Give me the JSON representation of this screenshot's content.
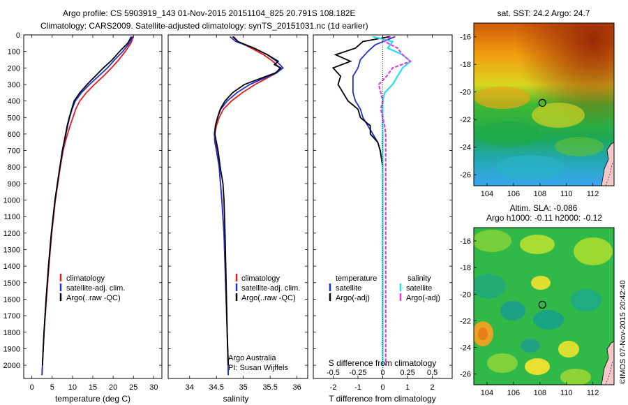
{
  "header": {
    "line1": "Argo profile: CS 5903919_143 01-Nov-2015 20151104_825 20.791S 108.182E",
    "line2": "Climatology: CARS2009. Satellite-adjusted climatology: synTS_20151031.nc (1d earlier)"
  },
  "colors": {
    "clim": "#e41a1c",
    "sat": "#1f2fd6",
    "argo": "#000000",
    "sal_sat": "#22e0f0",
    "sal_argo": "#e040e0"
  },
  "depth_ticks": [
    0,
    100,
    200,
    300,
    400,
    500,
    600,
    700,
    800,
    900,
    1000,
    1100,
    1200,
    1300,
    1400,
    1500,
    1600,
    1700,
    1800,
    1900,
    2000
  ],
  "chart_data": [
    {
      "type": "line",
      "xlabel": "temperature (deg C)",
      "xlim": [
        -2,
        32
      ],
      "xticks": [
        0,
        5,
        10,
        15,
        20,
        25,
        30
      ],
      "ylim": [
        2080,
        0
      ],
      "legend": [
        "climatology",
        "satellite-adj. clim.",
        "Argo(..raw -QC)"
      ],
      "series": [
        {
          "name": "climatology",
          "color_key": "clim",
          "depth": [
            10,
            50,
            100,
            150,
            200,
            250,
            300,
            350,
            400,
            450,
            500,
            550,
            600,
            650,
            700,
            800,
            900,
            1000,
            1200,
            1400,
            1600,
            1800,
            2000,
            2060
          ],
          "values": [
            25.0,
            24.4,
            23.0,
            21.4,
            19.6,
            17.6,
            15.4,
            13.4,
            11.8,
            10.8,
            10.1,
            9.4,
            8.8,
            8.2,
            7.7,
            7.0,
            6.4,
            5.8,
            4.9,
            4.2,
            3.6,
            3.0,
            2.6,
            2.5
          ]
        },
        {
          "name": "satellite-adj. clim.",
          "color_key": "sat",
          "depth": [
            10,
            50,
            100,
            150,
            200,
            250,
            300,
            350,
            400,
            450,
            500,
            550,
            600,
            650,
            700,
            800,
            900,
            1000,
            1200,
            1400,
            1600,
            1800,
            2000,
            2060
          ],
          "values": [
            24.8,
            24.0,
            22.4,
            20.4,
            18.6,
            16.4,
            14.2,
            12.2,
            10.7,
            9.9,
            9.3,
            8.8,
            8.4,
            8.0,
            7.6,
            6.9,
            6.3,
            5.7,
            4.8,
            4.1,
            3.5,
            3.0,
            2.6,
            2.5
          ]
        },
        {
          "name": "Argo(..raw -QC)",
          "color_key": "argo",
          "depth": [
            10,
            50,
            100,
            150,
            200,
            250,
            300,
            350,
            400,
            450,
            500,
            550,
            600,
            650,
            700,
            800,
            900,
            1000,
            1200,
            1400,
            1600,
            1800,
            2000
          ],
          "values": [
            24.5,
            23.6,
            21.6,
            19.8,
            17.6,
            15.6,
            13.6,
            11.8,
            10.4,
            9.8,
            9.2,
            8.7,
            8.3,
            7.9,
            7.5,
            6.9,
            6.3,
            5.7,
            4.8,
            4.1,
            3.5,
            3.0,
            2.6
          ]
        }
      ]
    },
    {
      "type": "line",
      "xlabel": "salinity",
      "xlim": [
        33.6,
        36.2
      ],
      "xticks": [
        34,
        34.5,
        35,
        35.5,
        36
      ],
      "ylim": [
        2080,
        0
      ],
      "legend": [
        "climatology",
        "satellite-adj. clim.",
        "Argo(..raw -QC)"
      ],
      "annotation": [
        "Argo Australia",
        "PI: Susan Wijffels"
      ],
      "series": [
        {
          "name": "climatology",
          "color_key": "clim",
          "depth": [
            10,
            40,
            80,
            120,
            160,
            200,
            230,
            260,
            300,
            350,
            400,
            450,
            500,
            550,
            600,
            650,
            700,
            800,
            1000,
            1200,
            1500,
            1800,
            2060
          ],
          "values": [
            34.82,
            34.9,
            35.15,
            35.38,
            35.55,
            35.68,
            35.62,
            35.45,
            35.22,
            34.98,
            34.78,
            34.63,
            34.55,
            34.5,
            34.47,
            34.48,
            34.51,
            34.55,
            34.6,
            34.64,
            34.67,
            34.7,
            34.72
          ]
        },
        {
          "name": "satellite-adj. clim.",
          "color_key": "sat",
          "depth": [
            10,
            40,
            80,
            120,
            160,
            200,
            230,
            260,
            300,
            350,
            400,
            450,
            500,
            550,
            600,
            650,
            700,
            800,
            1000,
            1200,
            1500,
            1800,
            2060
          ],
          "values": [
            34.75,
            34.86,
            35.2,
            35.45,
            35.62,
            35.74,
            35.62,
            35.4,
            35.12,
            34.88,
            34.7,
            34.58,
            34.52,
            34.48,
            34.46,
            34.47,
            34.5,
            34.55,
            34.6,
            34.64,
            34.67,
            34.7,
            34.72
          ]
        },
        {
          "name": "Argo(..raw -QC)",
          "color_key": "argo",
          "depth": [
            10,
            40,
            80,
            120,
            160,
            180,
            200,
            230,
            260,
            300,
            350,
            400,
            450,
            500,
            550,
            600,
            650,
            700,
            800,
            900,
            1000,
            1200,
            1500,
            1800,
            2000
          ],
          "values": [
            34.8,
            34.9,
            35.2,
            35.45,
            35.65,
            35.58,
            35.7,
            35.6,
            35.35,
            35.02,
            34.8,
            34.66,
            34.57,
            34.52,
            34.48,
            34.47,
            34.5,
            34.53,
            34.57,
            34.62,
            34.64,
            34.66,
            34.68,
            34.7,
            34.72
          ]
        }
      ]
    },
    {
      "type": "line",
      "xlabel": "T difference from climatology",
      "xlabel_top": "S difference from climatology",
      "xlim": [
        -2.8,
        2.8
      ],
      "xticks": [
        -2,
        -1,
        0,
        1,
        2
      ],
      "xticks_sal": [
        -0.5,
        -0.25,
        0,
        0.25,
        0.5
      ],
      "xtick_labels_sal": [
        "-0.5",
        "-0.25",
        "0",
        "0.25",
        "0.5"
      ],
      "ylim": [
        2080,
        0
      ],
      "legend_temp": {
        "title": "temperature",
        "items": [
          "satellite",
          "Argo(-adj)"
        ]
      },
      "legend_sal": {
        "title": "salinity",
        "items": [
          "satellite",
          "Argo(-adj)"
        ]
      },
      "series": [
        {
          "name": "satellite",
          "color_key": "sat",
          "depth": [
            10,
            60,
            100,
            150,
            200,
            250,
            300,
            350,
            400,
            450,
            500,
            550,
            600,
            650,
            700,
            800,
            1000,
            1400,
            2000
          ],
          "values": [
            0.5,
            -0.3,
            -0.6,
            -0.9,
            -1.0,
            -1.2,
            -1.2,
            -1.2,
            -1.1,
            -0.9,
            -0.8,
            -0.6,
            -0.4,
            -0.2,
            -0.1,
            0,
            0,
            0,
            0
          ]
        },
        {
          "name": "Argo(-adj)",
          "color_key": "argo",
          "depth": [
            10,
            40,
            80,
            120,
            160,
            200,
            250,
            300,
            350,
            400,
            450,
            500,
            550,
            600,
            650,
            700,
            800,
            1000,
            1400,
            2000
          ],
          "values": [
            0.3,
            -0.8,
            -1.1,
            -1.9,
            -1.3,
            -2.0,
            -1.7,
            -1.8,
            -1.6,
            -1.4,
            -1.0,
            -0.9,
            -0.5,
            -0.5,
            -0.2,
            -0.1,
            0,
            0,
            0,
            0
          ]
        },
        {
          "name": "satellite (salinity)",
          "color_key": "sal_sat",
          "depth": [
            10,
            40,
            80,
            120,
            160,
            200,
            250,
            300,
            350,
            400,
            450,
            500,
            550,
            600,
            700,
            800,
            1000,
            1400,
            2000
          ],
          "values": [
            -0.1,
            0.1,
            0.05,
            0.2,
            0.28,
            0.2,
            0.15,
            0.1,
            0.02,
            0.0,
            0.0,
            0.0,
            0.0,
            0.0,
            0.0,
            0.0,
            0.0,
            0.0,
            0.0
          ]
        },
        {
          "name": "Argo(-adj) (salinity)",
          "color_key": "sal_argo",
          "depth": [
            10,
            40,
            80,
            120,
            160,
            200,
            250,
            300,
            350,
            400,
            450,
            500,
            550,
            600,
            700,
            800,
            1000,
            1400,
            2000
          ],
          "values": [
            0.08,
            0.02,
            0.15,
            0.2,
            0.28,
            0.1,
            0.04,
            -0.04,
            -0.02,
            0.0,
            -0.02,
            0.0,
            0.02,
            0.03,
            0.03,
            0.03,
            0.03,
            0.03,
            0.03
          ]
        }
      ]
    },
    {
      "type": "heatmap",
      "title": "sat. SST: 24.2  Argo: 24.7",
      "xlim": [
        103,
        113.6
      ],
      "ylim": [
        -26.8,
        -15
      ],
      "xticks": [
        104,
        106,
        108,
        110,
        112
      ],
      "yticks": [
        -16,
        -18,
        -20,
        -22,
        -24,
        -26
      ],
      "marker": [
        108.182,
        -20.791
      ]
    },
    {
      "type": "heatmap",
      "title": "Altim. SLA: -0.086",
      "subtitle": "Argo h1000: -0.11  h2000: -0.12",
      "xlim": [
        103,
        113.6
      ],
      "ylim": [
        -26.8,
        -15
      ],
      "xticks": [
        104,
        106,
        108,
        110,
        112
      ],
      "yticks": [
        -16,
        -18,
        -20,
        -22,
        -24,
        -26
      ],
      "marker": [
        108.182,
        -20.791
      ]
    }
  ],
  "credit": "©IMOS 07-Nov-2015 20:42:40"
}
